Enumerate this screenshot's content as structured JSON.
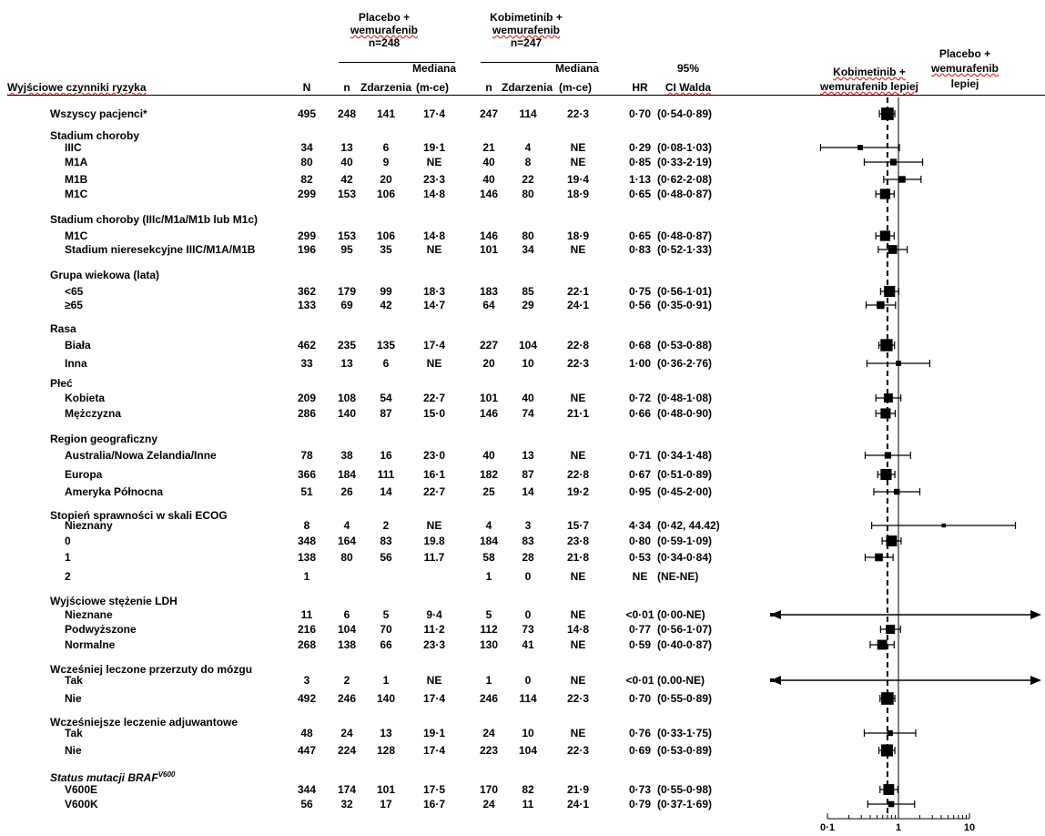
{
  "header": {
    "group1_line1": "Placebo +",
    "group1_line2": "wemurafenib",
    "group1_n": "n=248",
    "group2_line1": "Kobimetinib +",
    "group2_line2": "wemurafenib",
    "group2_n": "n=247",
    "col_factor": "Wyjściowe czynniki ryzyka",
    "col_N": "N",
    "col_n1": "n",
    "col_events1": "Zdarzenia",
    "col_median1_a": "Mediana",
    "col_median1_b": "(m-ce)",
    "col_n2": "n",
    "col_events2": "Zdarzenia",
    "col_median2_a": "Mediana",
    "col_median2_b": "(m-ce)",
    "col_hr": "HR",
    "col_ci_a": "95%",
    "col_ci_b": "CI Walda",
    "favor_left_a": "Kobimetinib +",
    "favor_left_b": "wemurafenib lepiej",
    "favor_right_a": "Placebo +",
    "favor_right_b": "wemurafenib",
    "favor_right_c": "lepiej"
  },
  "sections": [
    {
      "title": "Wszyscy pacjenci*",
      "title_y": 125,
      "rows": [
        {
          "label": "",
          "y": 125,
          "N": "495",
          "n1": "248",
          "e1": "141",
          "m1": "17·4",
          "n2": "247",
          "e2": "114",
          "m2": "22·3",
          "hr": "0·70",
          "ci": "(0·54-0·89)"
        }
      ]
    },
    {
      "title": "Stadium choroby",
      "title_y": 149,
      "rows": [
        {
          "label": "IIIC",
          "y": 162,
          "N": "34",
          "n1": "13",
          "e1": "6",
          "m1": "19·1",
          "n2": "21",
          "e2": "4",
          "m2": "NE",
          "hr": "0·29",
          "ci": "(0·08-1·03)"
        },
        {
          "label": "M1A",
          "y": 178,
          "N": "80",
          "n1": "40",
          "e1": "9",
          "m1": "NE",
          "n2": "40",
          "e2": "8",
          "m2": "NE",
          "hr": "0·85",
          "ci": "(0·33-2·19)"
        },
        {
          "label": "M1B",
          "y": 197,
          "N": "82",
          "n1": "42",
          "e1": "20",
          "m1": "23·3",
          "n2": "40",
          "e2": "22",
          "m2": "19·4",
          "hr": "1·13",
          "ci": "(0·62-2·08)"
        },
        {
          "label": "M1C",
          "y": 213,
          "N": "299",
          "n1": "153",
          "e1": "106",
          "m1": "14·8",
          "n2": "146",
          "e2": "80",
          "m2": "18·9",
          "hr": "0·65",
          "ci": "(0·48-0·87)"
        }
      ]
    },
    {
      "title": "Stadium choroby (IIIc/M1a/M1b lub M1c)",
      "title_y": 241,
      "rows": [
        {
          "label": "M1C",
          "y": 259,
          "N": "299",
          "n1": "153",
          "e1": "106",
          "m1": "14·8",
          "n2": "146",
          "e2": "80",
          "m2": "18·9",
          "hr": "0·65",
          "ci": "(0·48-0·87)"
        },
        {
          "label": "Stadium nieresekcyjne IIIC/M1A/M1B",
          "y": 274,
          "N": "196",
          "n1": "95",
          "e1": "35",
          "m1": "NE",
          "n2": "101",
          "e2": "34",
          "m2": "NE",
          "hr": "0·83",
          "ci": "(0·52-1·33)"
        }
      ]
    },
    {
      "title": "Grupa wiekowa (lata)",
      "title_y": 302,
      "rows": [
        {
          "label": "<65",
          "y": 320,
          "N": "362",
          "n1": "179",
          "e1": "99",
          "m1": "18·3",
          "n2": "183",
          "e2": "85",
          "m2": "22·1",
          "hr": "0·75",
          "ci": "(0·56-1·01)"
        },
        {
          "label": "≥65",
          "y": 335,
          "N": "133",
          "n1": "69",
          "e1": "42",
          "m1": "14·7",
          "n2": "64",
          "e2": "29",
          "m2": "24·1",
          "hr": "0·56",
          "ci": "(0·35-0·91)"
        }
      ]
    },
    {
      "title": "Rasa",
      "title_y": 361,
      "rows": [
        {
          "label": "Biała",
          "y": 379,
          "N": "462",
          "n1": "235",
          "e1": "135",
          "m1": "17·4",
          "n2": "227",
          "e2": "104",
          "m2": "22·8",
          "hr": "0·68",
          "ci": "(0·53-0·88)"
        },
        {
          "label": "Inna",
          "y": 399,
          "N": "33",
          "n1": "13",
          "e1": "6",
          "m1": "NE",
          "n2": "20",
          "e2": "10",
          "m2": "22·3",
          "hr": "1·00",
          "ci": "(0·36-2·76)"
        }
      ]
    },
    {
      "title": "Płeć",
      "title_y": 421,
      "rows": [
        {
          "label": "Kobieta",
          "y": 437,
          "N": "209",
          "n1": "108",
          "e1": "54",
          "m1": "22·7",
          "n2": "101",
          "e2": "40",
          "m2": "NE",
          "hr": "0·72",
          "ci": "(0·48-1·08)"
        },
        {
          "label": "Mężczyzna",
          "y": 454,
          "N": "286",
          "n1": "140",
          "e1": "87",
          "m1": "15·0",
          "n2": "146",
          "e2": "74",
          "m2": "21·1",
          "hr": "0·66",
          "ci": "(0·48-0·90)"
        }
      ]
    },
    {
      "title": "Region geograficzny",
      "title_y": 482,
      "rows": [
        {
          "label": "Australia/Nowa Zelandia/Inne",
          "y": 500,
          "N": "78",
          "n1": "38",
          "e1": "16",
          "m1": "23·0",
          "n2": "40",
          "e2": "13",
          "m2": "NE",
          "hr": "0·71",
          "ci": "(0·34-1·48)"
        },
        {
          "label": "Europa",
          "y": 521,
          "N": "366",
          "n1": "184",
          "e1": "111",
          "m1": "16·1",
          "n2": "182",
          "e2": "87",
          "m2": "22·8",
          "hr": "0·67",
          "ci": "(0·51-0·89)"
        },
        {
          "label": "Ameryka Północna",
          "y": 540,
          "N": "51",
          "n1": "26",
          "e1": "14",
          "m1": "22·7",
          "n2": "25",
          "e2": "14",
          "m2": "19·2",
          "hr": "0·95",
          "ci": "(0·45-2·00)"
        }
      ]
    },
    {
      "title": "Stopień sprawności w skali ECOG",
      "title_y": 566,
      "rows": [
        {
          "label": "Nieznany",
          "y": 577,
          "N": "8",
          "n1": "4",
          "e1": "2",
          "m1": "NE",
          "n2": "4",
          "e2": "3",
          "m2": "15·7",
          "hr": "4·34",
          "ci": "(0·42, 44.42)"
        },
        {
          "label": "0",
          "y": 594,
          "N": "348",
          "n1": "164",
          "e1": "83",
          "m1": "19.8",
          "n2": "184",
          "e2": "83",
          "m2": "23·8",
          "hr": "0·80",
          "ci": "(0·59-1·09)"
        },
        {
          "label": "1",
          "y": 612,
          "N": "138",
          "n1": "80",
          "e1": "56",
          "m1": "11.7",
          "n2": "58",
          "e2": "28",
          "m2": "21·8",
          "hr": "0·53",
          "ci": "(0·34-0·84)"
        },
        {
          "label": "2",
          "y": 633,
          "N": "1",
          "n1": "",
          "e1": "",
          "m1": "",
          "n2": "1",
          "e2": "0",
          "m2": "NE",
          "hr": "NE",
          "ci": "(NE-NE)"
        }
      ]
    },
    {
      "title": "Wyjściowe stężenie LDH",
      "title_y": 660,
      "rows": [
        {
          "label": "Nieznane",
          "y": 675,
          "N": "11",
          "n1": "6",
          "e1": "5",
          "m1": "9·4",
          "n2": "5",
          "e2": "0",
          "m2": "NE",
          "hr": "<0·01",
          "ci": "(0·00-NE)"
        },
        {
          "label": "Podwyższone",
          "y": 691,
          "N": "216",
          "n1": "104",
          "e1": "70",
          "m1": "11·2",
          "n2": "112",
          "e2": "73",
          "m2": "14·8",
          "hr": "0·77",
          "ci": "(0·56-1·07)"
        },
        {
          "label": "Normalne",
          "y": 708,
          "N": "268",
          "n1": "138",
          "e1": "66",
          "m1": "23·3",
          "n2": "130",
          "e2": "41",
          "m2": "NE",
          "hr": "0·59",
          "ci": "(0·40-0·87)"
        }
      ]
    },
    {
      "title": "Wcześniej leczone przerzuty do mózgu",
      "title_y": 735,
      "rows": [
        {
          "label": "Tak",
          "y": 747,
          "N": "3",
          "n1": "2",
          "e1": "1",
          "m1": "NE",
          "n2": "1",
          "e2": "0",
          "m2": "NE",
          "hr": "<0·01",
          "ci": "(0.00-NE)"
        },
        {
          "label": "Nie",
          "y": 767,
          "N": "492",
          "n1": "246",
          "e1": "140",
          "m1": "17·4",
          "n2": "246",
          "e2": "114",
          "m2": "22·3",
          "hr": "0·70",
          "ci": "(0·55-0·89)"
        }
      ]
    },
    {
      "title": "Wcześniejsze leczenie adjuwantowe",
      "title_y": 793,
      "rows": [
        {
          "label": "Tak",
          "y": 805,
          "N": "48",
          "n1": "24",
          "e1": "13",
          "m1": "19·1",
          "n2": "24",
          "e2": "10",
          "m2": "NE",
          "hr": "0·76",
          "ci": "(0·33-1·75)"
        },
        {
          "label": "Nie",
          "y": 824,
          "N": "447",
          "n1": "224",
          "e1": "128",
          "m1": "17·4",
          "n2": "223",
          "e2": "104",
          "m2": "22·3",
          "hr": "0·69",
          "ci": "(0·53-0·89)"
        }
      ]
    },
    {
      "title": "Status mutacji BRAF",
      "title_sup": "V600",
      "title_y": 851,
      "rows": [
        {
          "label": "V600E",
          "y": 867,
          "N": "344",
          "n1": "174",
          "e1": "101",
          "m1": "17·5",
          "n2": "170",
          "e2": "82",
          "m2": "21·9",
          "hr": "0·73",
          "ci": "(0·55-0·98)"
        },
        {
          "label": "V600K",
          "y": 883,
          "N": "56",
          "n1": "32",
          "e1": "17",
          "m1": "16·7",
          "n2": "24",
          "e2": "11",
          "m2": "24·1",
          "hr": "0·79",
          "ci": "(0·37-1·69)"
        }
      ]
    }
  ],
  "chart_data": {
    "type": "forest",
    "x_scale": "log",
    "xlim": [
      0.1,
      10
    ],
    "xticks": [
      "0·1",
      "1",
      "10"
    ],
    "reference_line": 1,
    "overall_hr_line": 0.7,
    "points": [
      {
        "name": "Wszyscy pacjenci*",
        "hr": 0.7,
        "lo": 0.54,
        "hi": 0.89,
        "w": 495
      },
      {
        "name": "IIIC",
        "hr": 0.29,
        "lo": 0.08,
        "hi": 1.03,
        "w": 34
      },
      {
        "name": "M1A",
        "hr": 0.85,
        "lo": 0.33,
        "hi": 2.19,
        "w": 80
      },
      {
        "name": "M1B",
        "hr": 1.13,
        "lo": 0.62,
        "hi": 2.08,
        "w": 82
      },
      {
        "name": "M1C",
        "hr": 0.65,
        "lo": 0.48,
        "hi": 0.87,
        "w": 299
      },
      {
        "name": "M1C",
        "hr": 0.65,
        "lo": 0.48,
        "hi": 0.87,
        "w": 299
      },
      {
        "name": "Stadium nieresekcyjne IIIC/M1A/M1B",
        "hr": 0.83,
        "lo": 0.52,
        "hi": 1.33,
        "w": 196
      },
      {
        "name": "<65",
        "hr": 0.75,
        "lo": 0.56,
        "hi": 1.01,
        "w": 362
      },
      {
        "name": "≥65",
        "hr": 0.56,
        "lo": 0.35,
        "hi": 0.91,
        "w": 133
      },
      {
        "name": "Biała",
        "hr": 0.68,
        "lo": 0.53,
        "hi": 0.88,
        "w": 462
      },
      {
        "name": "Inna",
        "hr": 1.0,
        "lo": 0.36,
        "hi": 2.76,
        "w": 33
      },
      {
        "name": "Kobieta",
        "hr": 0.72,
        "lo": 0.48,
        "hi": 1.08,
        "w": 209
      },
      {
        "name": "Mężczyzna",
        "hr": 0.66,
        "lo": 0.48,
        "hi": 0.9,
        "w": 286
      },
      {
        "name": "Australia/Nowa Zelandia/Inne",
        "hr": 0.71,
        "lo": 0.34,
        "hi": 1.48,
        "w": 78
      },
      {
        "name": "Europa",
        "hr": 0.67,
        "lo": 0.51,
        "hi": 0.89,
        "w": 366
      },
      {
        "name": "Ameryka Północna",
        "hr": 0.95,
        "lo": 0.45,
        "hi": 2.0,
        "w": 51
      },
      {
        "name": "Nieznany",
        "hr": 4.34,
        "lo": 0.42,
        "hi": 44.42,
        "w": 8
      },
      {
        "name": "0",
        "hr": 0.8,
        "lo": 0.59,
        "hi": 1.09,
        "w": 348
      },
      {
        "name": "1",
        "hr": 0.53,
        "lo": 0.34,
        "hi": 0.84,
        "w": 138
      },
      {
        "name": "Nieznane",
        "hr": 0.01,
        "lo": 0.0,
        "hi": null,
        "arrows": true,
        "w": 11
      },
      {
        "name": "Podwyższone",
        "hr": 0.77,
        "lo": 0.56,
        "hi": 1.07,
        "w": 216
      },
      {
        "name": "Normalne",
        "hr": 0.59,
        "lo": 0.4,
        "hi": 0.87,
        "w": 268
      },
      {
        "name": "Tak",
        "hr": 0.01,
        "lo": 0.0,
        "hi": null,
        "arrows": true,
        "w": 3
      },
      {
        "name": "Nie",
        "hr": 0.7,
        "lo": 0.55,
        "hi": 0.89,
        "w": 492
      },
      {
        "name": "Tak",
        "hr": 0.76,
        "lo": 0.33,
        "hi": 1.75,
        "w": 48
      },
      {
        "name": "Nie",
        "hr": 0.69,
        "lo": 0.53,
        "hi": 0.89,
        "w": 447
      },
      {
        "name": "V600E",
        "hr": 0.73,
        "lo": 0.55,
        "hi": 0.98,
        "w": 344
      },
      {
        "name": "V600K",
        "hr": 0.79,
        "lo": 0.37,
        "hi": 1.69,
        "w": 56
      }
    ]
  }
}
